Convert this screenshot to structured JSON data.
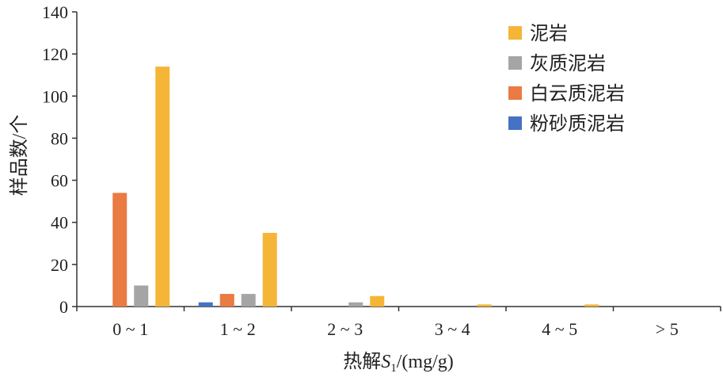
{
  "chart_data": {
    "type": "bar",
    "title": "",
    "xlabel_prefix": "热解",
    "xlabel_var": "S",
    "xlabel_sub": "1",
    "xlabel_unit": "/(mg/g)",
    "ylabel": "样品数/个",
    "ylim": [
      0,
      140
    ],
    "yticks": [
      0,
      20,
      40,
      60,
      80,
      100,
      120,
      140
    ],
    "categories": [
      "0 ~ 1",
      "1 ~ 2",
      "2 ~ 3",
      "3 ~ 4",
      "4 ~ 5",
      "> 5"
    ],
    "legend_position": "top-right",
    "series": [
      {
        "name": "粉砂质泥岩",
        "color": "#4472C4",
        "values": [
          0,
          2,
          0,
          0,
          0,
          0
        ]
      },
      {
        "name": "白云质泥岩",
        "color": "#E97B43",
        "values": [
          54,
          6,
          0,
          0,
          0,
          0
        ]
      },
      {
        "name": "灰质泥岩",
        "color": "#A5A5A5",
        "values": [
          10,
          6,
          2,
          0,
          0,
          0
        ]
      },
      {
        "name": "泥岩",
        "color": "#F5B536",
        "values": [
          114,
          35,
          5,
          1,
          1,
          0
        ]
      }
    ],
    "legend_order": [
      "泥岩",
      "灰质泥岩",
      "白云质泥岩",
      "粉砂质泥岩"
    ]
  }
}
